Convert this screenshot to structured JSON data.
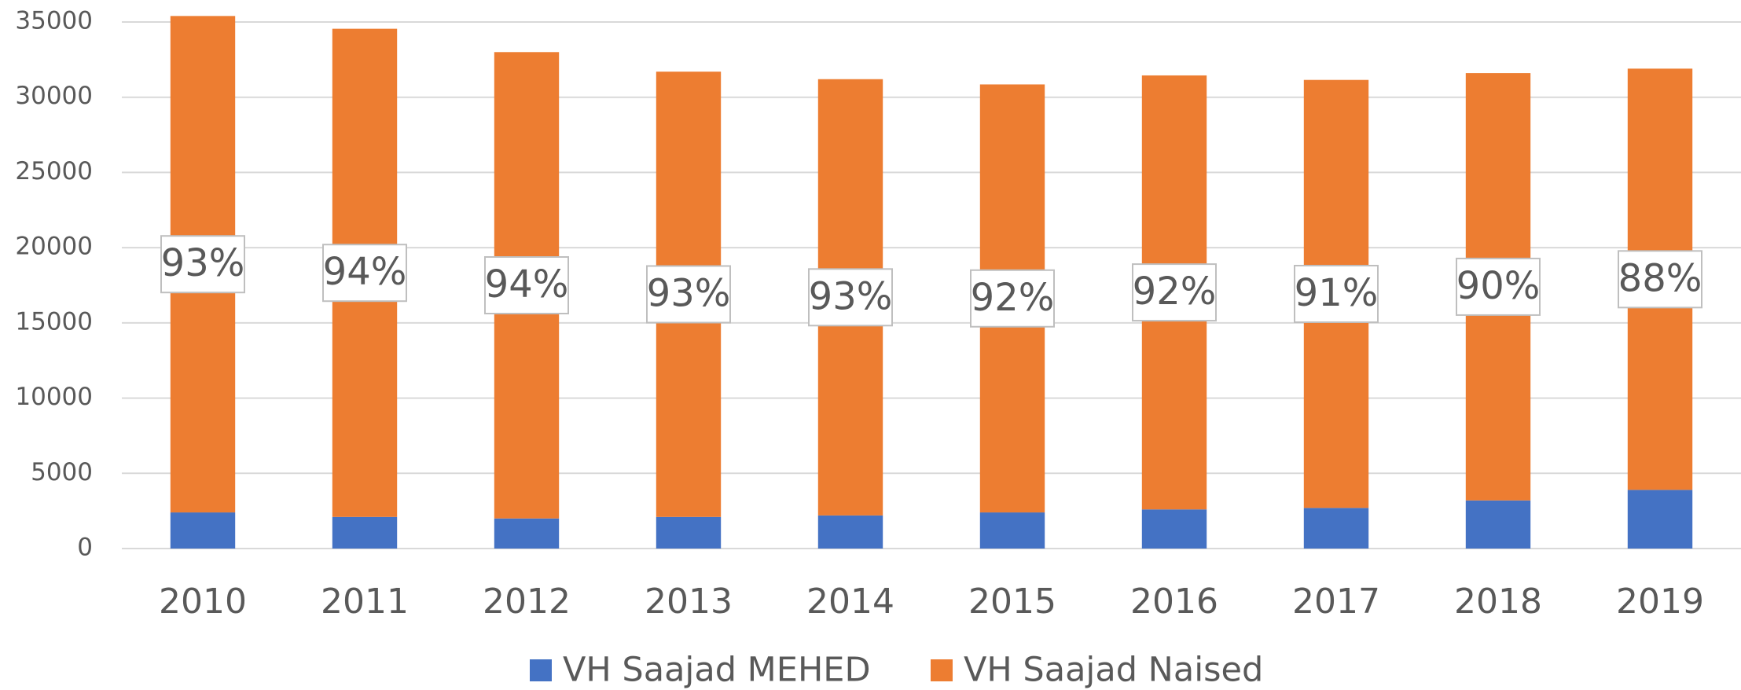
{
  "chart_data": {
    "type": "stacked_bar",
    "categories": [
      "2010",
      "2011",
      "2012",
      "2013",
      "2014",
      "2015",
      "2016",
      "2017",
      "2018",
      "2019"
    ],
    "series": [
      {
        "name": "VH Saajad MEHED",
        "color": "#4472c4",
        "values": [
          2400,
          2100,
          2000,
          2100,
          2200,
          2400,
          2600,
          2700,
          3200,
          3900
        ]
      },
      {
        "name": "VH Saajad Naised",
        "color": "#ed7d31",
        "values": [
          33000,
          32450,
          31000,
          29600,
          29000,
          28450,
          28850,
          28450,
          28400,
          28000
        ]
      }
    ],
    "share_labels": [
      "93%",
      "94%",
      "94%",
      "93%",
      "93%",
      "92%",
      "92%",
      "91%",
      "90%",
      "88%"
    ],
    "ylim": [
      0,
      35000
    ],
    "yticks": [
      0,
      5000,
      10000,
      15000,
      20000,
      25000,
      30000,
      35000
    ],
    "grid": true,
    "legend": "bottom"
  }
}
